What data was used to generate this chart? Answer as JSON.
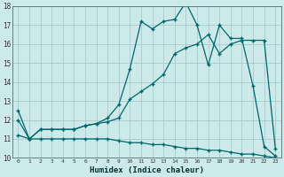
{
  "xlabel": "Humidex (Indice chaleur)",
  "xlim": [
    -0.5,
    23.5
  ],
  "ylim": [
    10,
    18
  ],
  "background_color": "#cdeaea",
  "grid_color": "#aacccc",
  "line_color": "#006868",
  "line1_x": [
    0,
    1,
    2,
    3,
    4,
    5,
    6,
    7,
    8,
    9,
    10,
    11,
    12,
    13,
    14,
    15,
    16,
    17,
    18,
    19,
    20,
    21,
    22,
    23
  ],
  "line1_y": [
    12.5,
    11.0,
    11.5,
    11.5,
    11.5,
    11.5,
    11.7,
    11.8,
    12.1,
    12.8,
    14.7,
    17.2,
    16.8,
    17.2,
    17.3,
    18.2,
    17.0,
    14.9,
    17.0,
    16.3,
    16.3,
    13.8,
    10.6,
    10.1
  ],
  "line2_x": [
    0,
    1,
    2,
    3,
    4,
    5,
    6,
    7,
    8,
    9,
    10,
    11,
    12,
    13,
    14,
    15,
    16,
    17,
    18,
    19,
    20,
    21,
    22,
    23
  ],
  "line2_y": [
    11.2,
    11.0,
    11.5,
    11.5,
    11.5,
    11.5,
    11.7,
    11.8,
    11.9,
    12.1,
    13.1,
    13.5,
    13.9,
    14.4,
    15.5,
    15.8,
    16.0,
    16.5,
    15.5,
    16.0,
    16.2,
    16.2,
    16.2,
    10.5
  ],
  "line3_x": [
    0,
    1,
    2,
    3,
    4,
    5,
    6,
    7,
    8,
    9,
    10,
    11,
    12,
    13,
    14,
    15,
    16,
    17,
    18,
    19,
    20,
    21,
    22,
    23
  ],
  "line3_y": [
    12.0,
    11.0,
    11.0,
    11.0,
    11.0,
    11.0,
    11.0,
    11.0,
    11.0,
    10.9,
    10.8,
    10.8,
    10.7,
    10.7,
    10.6,
    10.5,
    10.5,
    10.4,
    10.4,
    10.3,
    10.2,
    10.2,
    10.1,
    10.0
  ],
  "xtick_labels": [
    "0",
    "1",
    "2",
    "3",
    "4",
    "5",
    "6",
    "7",
    "8",
    "9",
    "10",
    "11",
    "12",
    "13",
    "14",
    "15",
    "16",
    "17",
    "18",
    "19",
    "20",
    "21",
    "22",
    "23"
  ],
  "ytick_values": [
    10,
    11,
    12,
    13,
    14,
    15,
    16,
    17,
    18
  ]
}
